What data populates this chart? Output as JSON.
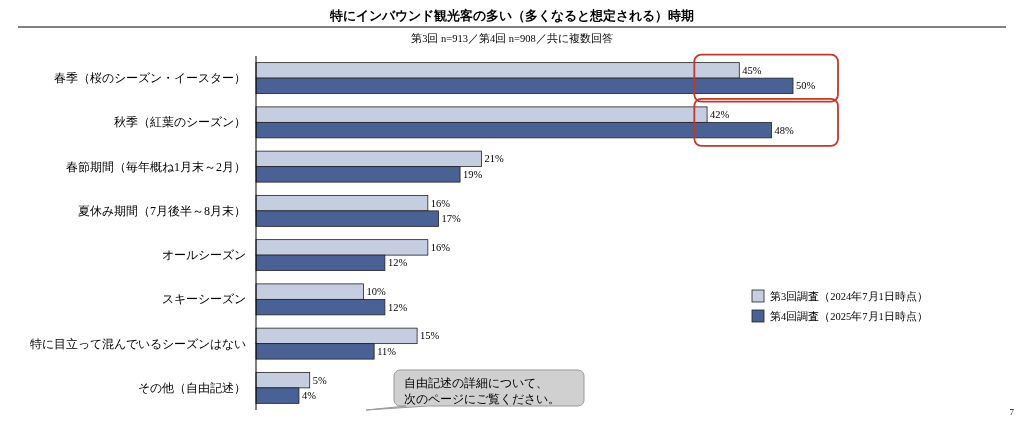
{
  "chart_data": {
    "type": "bar",
    "orientation": "horizontal",
    "title": "特にインバウンド観光客の多い（多くなると想定される）時期",
    "subtitle": "第3回 n=913／第4回 n=908／共に複数回答",
    "categories": [
      "春季（桜のシーズン・イースター）",
      "秋季（紅葉のシーズン）",
      "春節期間（毎年概ね1月末～2月）",
      "夏休み期間（7月後半～8月末）",
      "オールシーズン",
      "スキーシーズン",
      "特に目立って混んでいるシーズンはない",
      "その他（自由記述）"
    ],
    "series": [
      {
        "name": "第3回調査（2024年7月1日時点）",
        "color": "#c5cde0",
        "values": [
          45,
          42,
          21,
          16,
          16,
          10,
          15,
          5
        ],
        "value_labels": [
          "45%",
          "42%",
          "21%",
          "16%",
          "16%",
          "10%",
          "15%",
          "5%"
        ]
      },
      {
        "name": "第4回調査（2025年7月1日時点）",
        "color": "#4a6195",
        "values": [
          50,
          48,
          19,
          17,
          12,
          12,
          11,
          4
        ],
        "value_labels": [
          "50%",
          "48%",
          "19%",
          "17%",
          "12%",
          "12%",
          "11%",
          "4%"
        ]
      }
    ],
    "legend": "right",
    "annotations": [
      "自由記述の詳細について、次のページにご覧ください。",
      "7"
    ]
  }
}
